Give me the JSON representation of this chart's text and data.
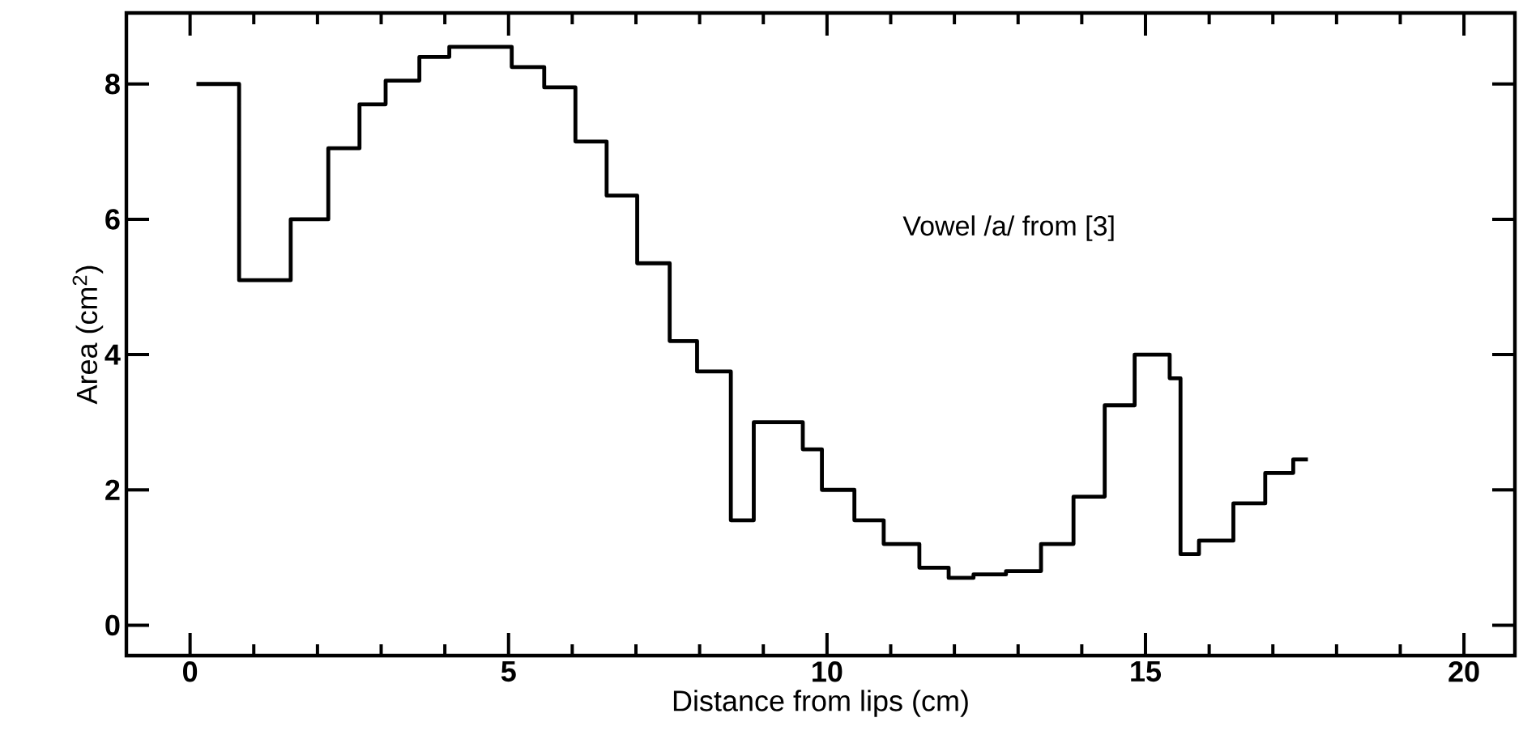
{
  "chart_data": {
    "type": "step",
    "xlabel": "Distance from lips (cm)",
    "ylabel": "Area (cm$^{2}$)",
    "annotations": [
      "Vowel   /a/   from [3]"
    ],
    "x": [
      0.1,
      0.77,
      1.58,
      2.17,
      2.66,
      3.07,
      3.6,
      4.07,
      5.05,
      5.56,
      6.05,
      6.54,
      7.02,
      7.53,
      7.96,
      8.49,
      8.85,
      9.62,
      9.92,
      10.43,
      10.89,
      11.45,
      11.91,
      12.3,
      12.81,
      13.36,
      13.87,
      14.36,
      14.83,
      15.38,
      15.55,
      15.84,
      16.38,
      16.88,
      17.32,
      17.55
    ],
    "values": [
      8.0,
      5.1,
      6.0,
      7.05,
      7.7,
      8.05,
      8.4,
      8.55,
      8.25,
      7.95,
      7.15,
      6.35,
      5.35,
      4.2,
      3.75,
      1.55,
      3.0,
      2.6,
      2.0,
      1.55,
      1.2,
      0.85,
      0.7,
      0.75,
      0.8,
      1.2,
      1.9,
      3.25,
      4.0,
      3.65,
      1.05,
      1.25,
      1.8,
      2.25,
      2.45,
      2.45
    ],
    "color": "#000000",
    "xlim": [
      -1,
      20.8
    ],
    "ylim": [
      -0.45,
      9.05
    ],
    "xticks": [
      0,
      5,
      10,
      15,
      20
    ],
    "yticks": [
      0,
      2,
      4,
      6,
      8
    ],
    "grid": false
  }
}
